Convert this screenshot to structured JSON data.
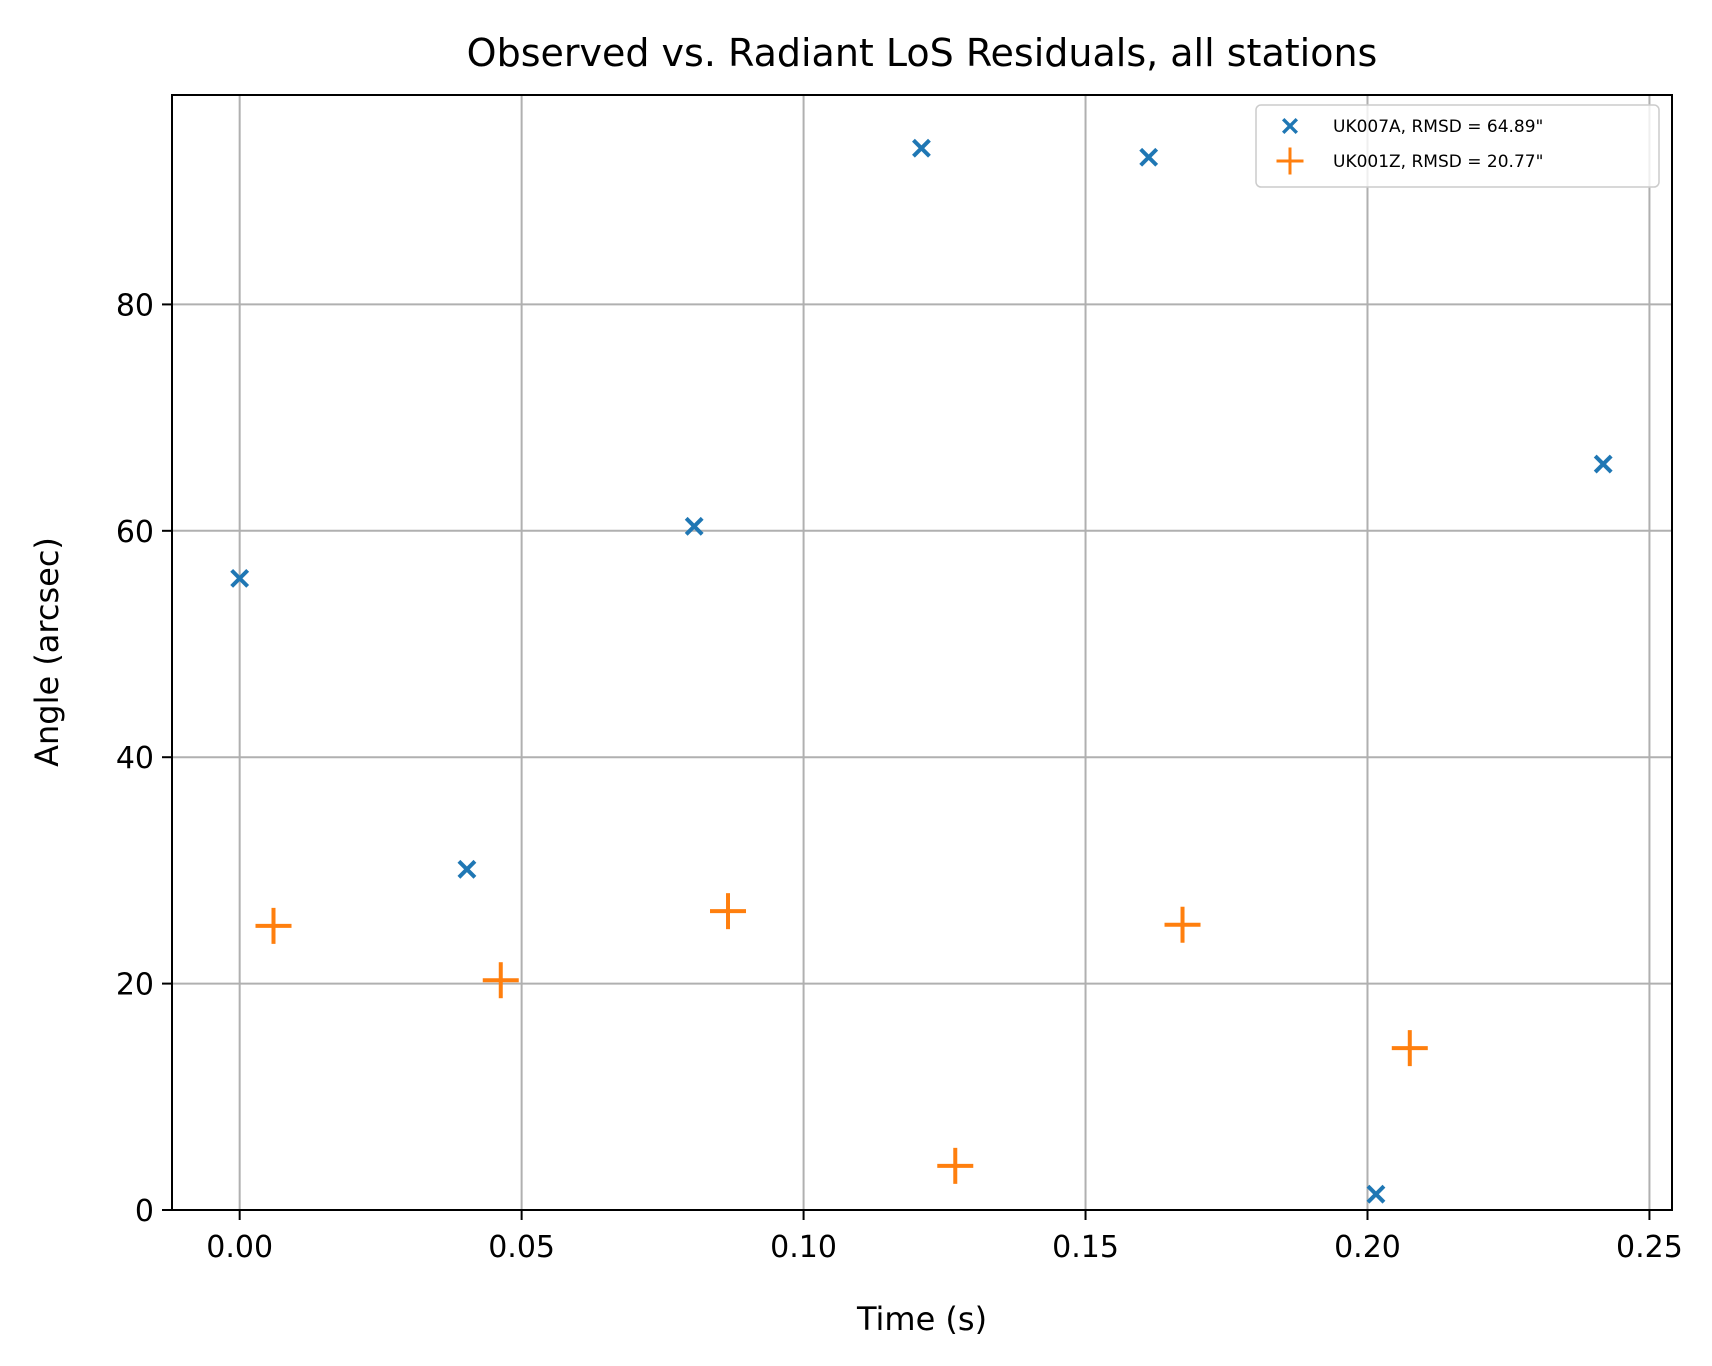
{
  "chart_data": {
    "type": "scatter",
    "title": "Observed vs. Radiant LoS Residuals, all stations",
    "xlabel": "Time (s)",
    "ylabel": "Angle (arcsec)",
    "xlim": [
      -0.012,
      0.254
    ],
    "ylim": [
      0,
      98.5
    ],
    "x_ticks": [
      0.0,
      0.05,
      0.1,
      0.15,
      0.2,
      0.25
    ],
    "x_tick_labels": [
      "0.00",
      "0.05",
      "0.10",
      "0.15",
      "0.20",
      "0.25"
    ],
    "y_ticks": [
      0,
      20,
      40,
      60,
      80
    ],
    "y_tick_labels": [
      "0",
      "20",
      "40",
      "60",
      "80"
    ],
    "grid": true,
    "legend_position": "top-right",
    "series": [
      {
        "name": "UK007A, RMSD = 64.89\"",
        "marker": "x",
        "color": "#1f77b4",
        "x": [
          0.0,
          0.0403,
          0.0806,
          0.1209,
          0.1612,
          0.2015,
          0.2418
        ],
        "y": [
          55.8,
          30.1,
          60.4,
          93.8,
          93.0,
          1.4,
          65.9
        ]
      },
      {
        "name": "UK001Z, RMSD = 20.77\"",
        "marker": "+",
        "color": "#ff7f0e",
        "x": [
          0.006,
          0.0463,
          0.0866,
          0.1269,
          0.1672,
          0.2075
        ],
        "y": [
          25.1,
          20.3,
          26.4,
          3.9,
          25.2,
          14.3
        ]
      }
    ]
  }
}
